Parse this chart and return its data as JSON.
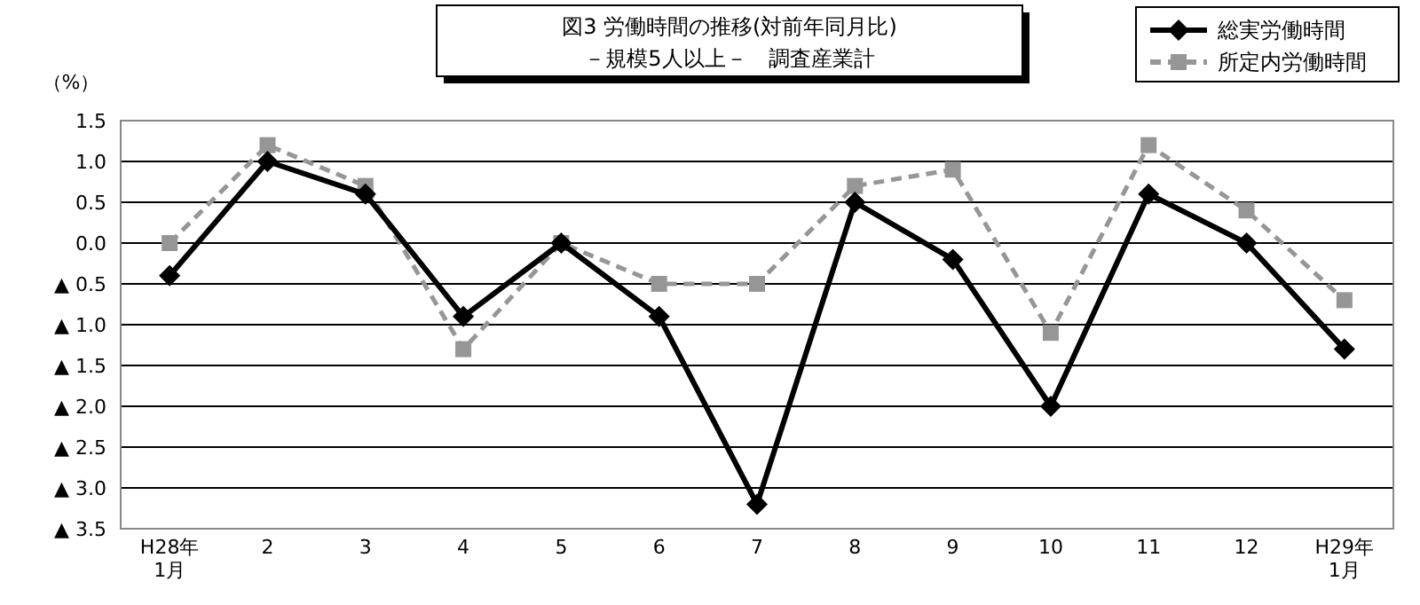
{
  "chart_data": {
    "type": "line",
    "title": "図3 労働時間の推移(対前年同月比)",
    "subtitle": "－規模5人以上－　調査産業計",
    "ylabel": "（%）",
    "categories": [
      "H28年\n1月",
      "2",
      "3",
      "4",
      "5",
      "6",
      "7",
      "8",
      "9",
      "10",
      "11",
      "12",
      "H29年\n1月"
    ],
    "series": [
      {
        "name": "総実労働時間",
        "color": "#000000",
        "marker": "diamond",
        "line_style": "solid",
        "values": [
          -0.4,
          1.0,
          0.6,
          -0.9,
          0.0,
          -0.9,
          -3.2,
          0.5,
          -0.2,
          -2.0,
          0.6,
          0.0,
          -1.3
        ]
      },
      {
        "name": "所定内労働時間",
        "color": "#969696",
        "marker": "square",
        "line_style": "dashed",
        "values": [
          0.0,
          1.2,
          0.7,
          -1.3,
          0.0,
          -0.5,
          -0.5,
          0.7,
          0.9,
          -1.1,
          1.2,
          0.4,
          -0.7
        ]
      }
    ],
    "ylim": [
      -3.5,
      1.5
    ],
    "yticks": [
      {
        "value": 1.5,
        "label": "1.5"
      },
      {
        "value": 1.0,
        "label": "1.0"
      },
      {
        "value": 0.5,
        "label": "0.5"
      },
      {
        "value": 0.0,
        "label": "0.0"
      },
      {
        "value": -0.5,
        "label": "▲ 0.5"
      },
      {
        "value": -1.0,
        "label": "▲ 1.0"
      },
      {
        "value": -1.5,
        "label": "▲ 1.5"
      },
      {
        "value": -2.0,
        "label": "▲ 2.0"
      },
      {
        "value": -2.5,
        "label": "▲ 2.5"
      },
      {
        "value": -3.0,
        "label": "▲ 3.0"
      },
      {
        "value": -3.5,
        "label": "▲ 3.5"
      }
    ],
    "grid": "y",
    "legend": "top right"
  }
}
